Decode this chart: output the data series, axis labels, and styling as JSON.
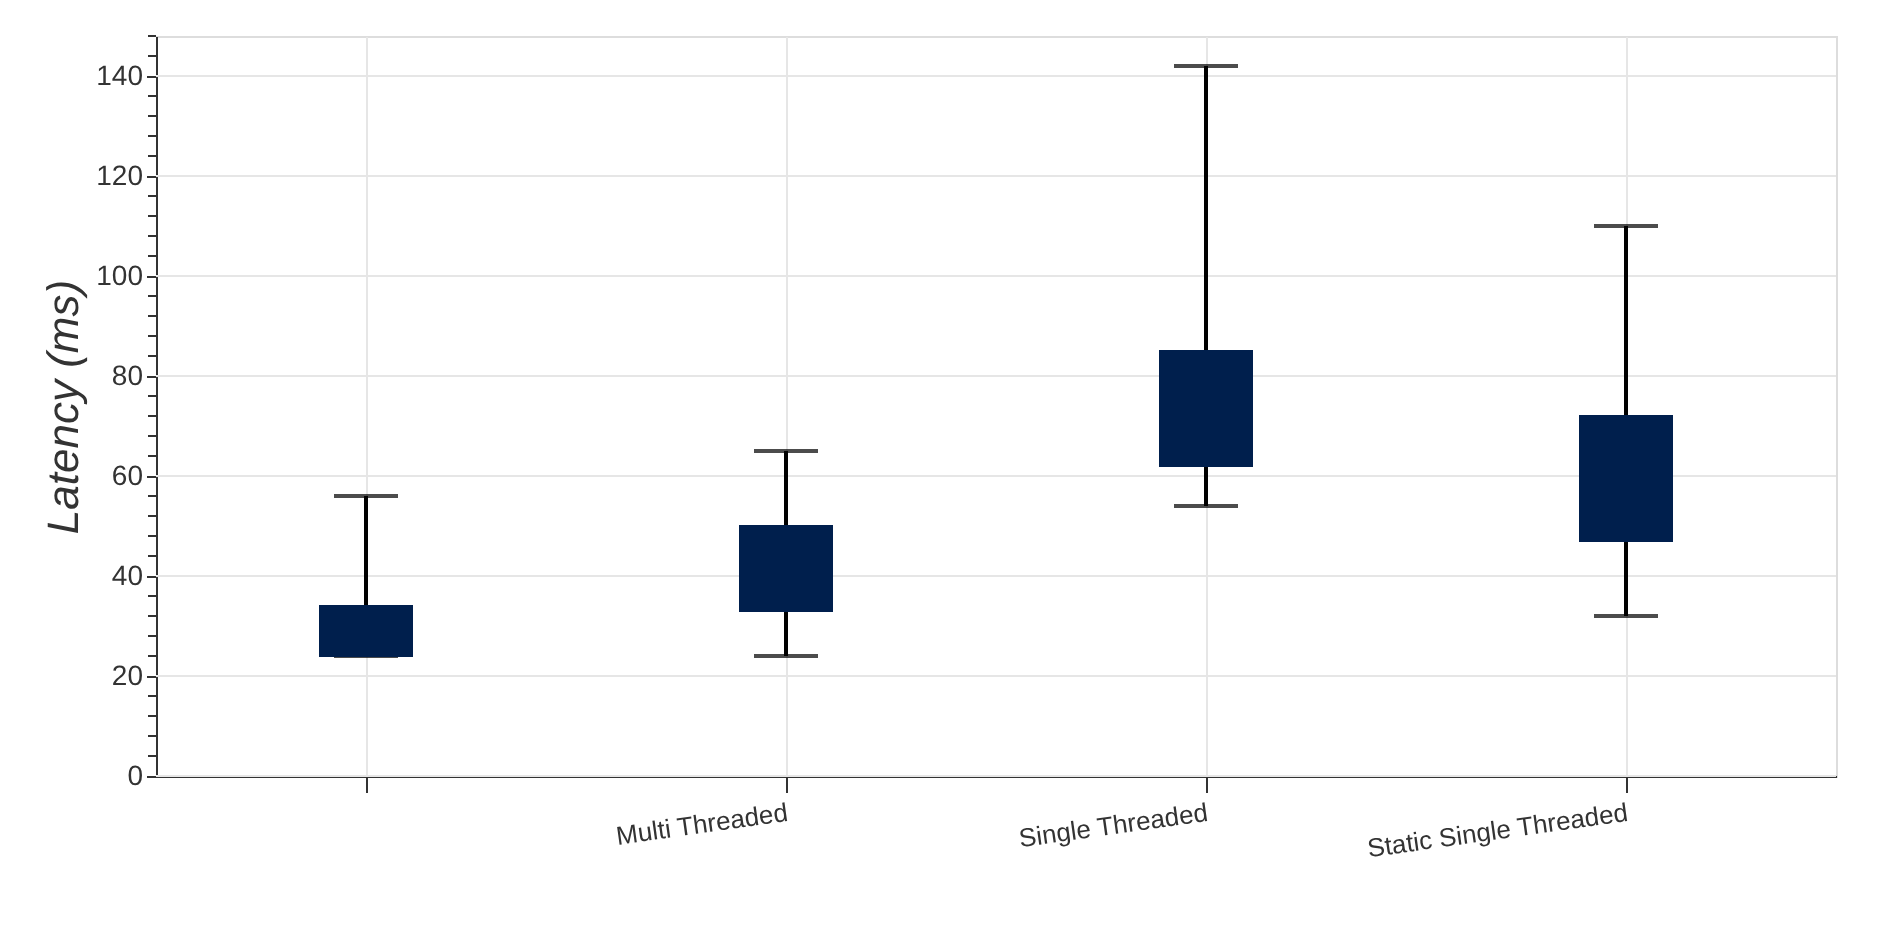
{
  "chart_data": {
    "type": "box",
    "ylabel": "Latency (ms)",
    "categories": [
      null,
      "Multi Threaded",
      "Single Threaded",
      "Static Single Threaded"
    ],
    "boxes": [
      {
        "low": 24,
        "q1": 24,
        "q3": 34,
        "high": 56
      },
      {
        "low": 24,
        "q1": 33,
        "q3": 50,
        "high": 65
      },
      {
        "low": 54,
        "q1": 62,
        "q3": 85,
        "high": 142
      },
      {
        "low": 32,
        "q1": 47,
        "q3": 72,
        "high": 110
      }
    ],
    "color": "#001f4d",
    "ylim": [
      0,
      148
    ],
    "yticks": [
      0,
      {
        "value": 4,
        "label": null
      },
      {
        "value": 8,
        "label": null
      },
      {
        "value": 12,
        "label": null
      },
      {
        "value": 16,
        "label": null
      },
      20,
      {
        "value": 24,
        "label": null
      },
      {
        "value": 28,
        "label": null
      },
      {
        "value": 32,
        "label": null
      },
      {
        "value": 36,
        "label": null
      },
      40,
      {
        "value": 44,
        "label": null
      },
      {
        "value": 48,
        "label": null
      },
      {
        "value": 52,
        "label": null
      },
      {
        "value": 56,
        "label": null
      },
      60,
      {
        "value": 64,
        "label": null
      },
      {
        "value": 68,
        "label": null
      },
      {
        "value": 72,
        "label": null
      },
      {
        "value": 76,
        "label": null
      },
      80,
      {
        "value": 84,
        "label": null
      },
      {
        "value": 88,
        "label": null
      },
      {
        "value": 92,
        "label": null
      },
      {
        "value": 96,
        "label": null
      },
      100,
      {
        "value": 104,
        "label": null
      },
      {
        "value": 108,
        "label": null
      },
      {
        "value": 112,
        "label": null
      },
      {
        "value": 116,
        "label": null
      },
      120,
      {
        "value": 124,
        "label": null
      },
      {
        "value": 128,
        "label": null
      },
      {
        "value": 132,
        "label": null
      },
      {
        "value": 136,
        "label": null
      },
      140,
      {
        "value": 144,
        "label": null
      },
      {
        "value": 148,
        "label": null
      }
    ],
    "grid": true
  }
}
